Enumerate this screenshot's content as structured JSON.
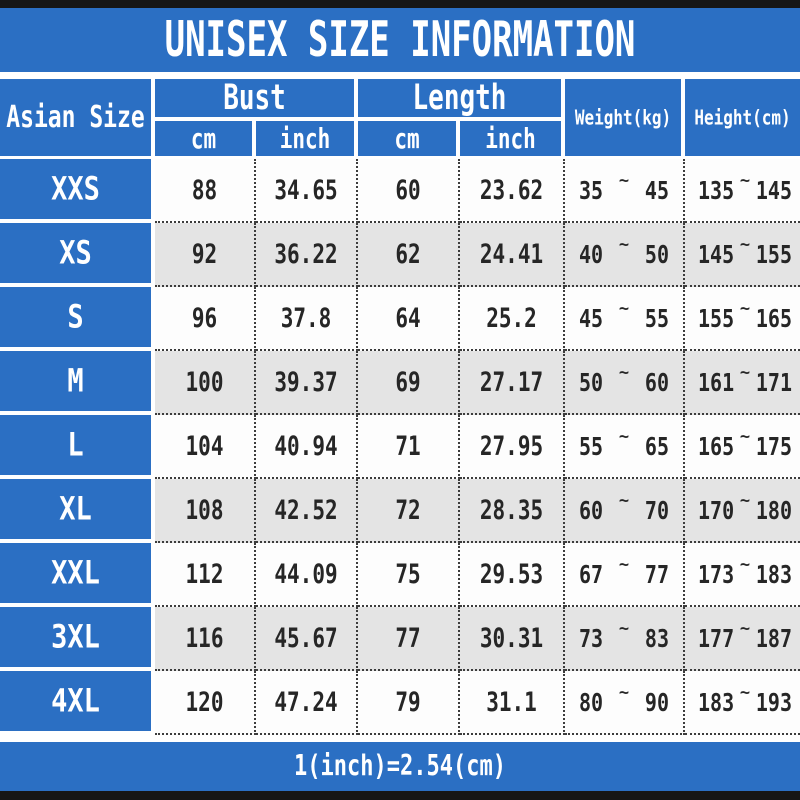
{
  "title": "UNISEX SIZE INFORMATION",
  "colors": {
    "blue": "#2b6fc3",
    "row_alt_gray": "#e4e4e4",
    "row_white": "#fdfdfd",
    "border_bar_black": "#161616",
    "dotted_border": "#3c3c3c",
    "header_text": "#ffffff",
    "data_text": "#262626"
  },
  "header": {
    "asian_size": "Asian Size",
    "bust": "Bust",
    "length": "Length",
    "cm": "cm",
    "inch": "inch",
    "weight": "Weight(kg)",
    "height": "Height(cm)"
  },
  "footer": {
    "note": "1(inch)=2.54(cm)"
  },
  "tilde": "~",
  "chart_data": {
    "type": "table",
    "title": "UNISEX SIZE INFORMATION",
    "columns": [
      "Asian Size",
      "Bust cm",
      "Bust inch",
      "Length cm",
      "Length inch",
      "Weight(kg)",
      "Height(cm)"
    ],
    "rows": [
      {
        "size": "XXS",
        "bust_cm": "88",
        "bust_inch": "34.65",
        "length_cm": "60",
        "length_inch": "23.62",
        "weight": [
          "35",
          "45"
        ],
        "height": [
          "135",
          "145"
        ]
      },
      {
        "size": "XS",
        "bust_cm": "92",
        "bust_inch": "36.22",
        "length_cm": "62",
        "length_inch": "24.41",
        "weight": [
          "40",
          "50"
        ],
        "height": [
          "145",
          "155"
        ]
      },
      {
        "size": "S",
        "bust_cm": "96",
        "bust_inch": "37.8",
        "length_cm": "64",
        "length_inch": "25.2",
        "weight": [
          "45",
          "55"
        ],
        "height": [
          "155",
          "165"
        ]
      },
      {
        "size": "M",
        "bust_cm": "100",
        "bust_inch": "39.37",
        "length_cm": "69",
        "length_inch": "27.17",
        "weight": [
          "50",
          "60"
        ],
        "height": [
          "161",
          "171"
        ]
      },
      {
        "size": "L",
        "bust_cm": "104",
        "bust_inch": "40.94",
        "length_cm": "71",
        "length_inch": "27.95",
        "weight": [
          "55",
          "65"
        ],
        "height": [
          "165",
          "175"
        ]
      },
      {
        "size": "XL",
        "bust_cm": "108",
        "bust_inch": "42.52",
        "length_cm": "72",
        "length_inch": "28.35",
        "weight": [
          "60",
          "70"
        ],
        "height": [
          "170",
          "180"
        ]
      },
      {
        "size": "XXL",
        "bust_cm": "112",
        "bust_inch": "44.09",
        "length_cm": "75",
        "length_inch": "29.53",
        "weight": [
          "67",
          "77"
        ],
        "height": [
          "173",
          "183"
        ]
      },
      {
        "size": "3XL",
        "bust_cm": "116",
        "bust_inch": "45.67",
        "length_cm": "77",
        "length_inch": "30.31",
        "weight": [
          "73",
          "83"
        ],
        "height": [
          "177",
          "187"
        ]
      },
      {
        "size": "4XL",
        "bust_cm": "120",
        "bust_inch": "47.24",
        "length_cm": "79",
        "length_inch": "31.1",
        "weight": [
          "80",
          "90"
        ],
        "height": [
          "183",
          "193"
        ]
      }
    ],
    "footnote": "1(inch)=2.54(cm)",
    "layout": {
      "alt_row_shading": "odd rows gray",
      "borders": "dotted black between data cells"
    }
  }
}
